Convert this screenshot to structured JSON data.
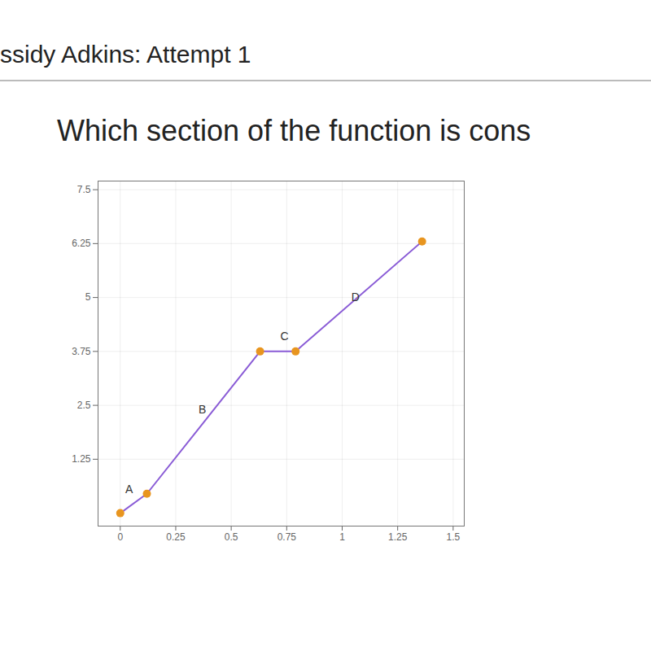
{
  "chart_data": {
    "type": "line",
    "subtitle": "ssidy Adkins: Attempt 1",
    "title": "Which section of the function is cons",
    "x": [
      0,
      0.12,
      0.63,
      0.79,
      1.36
    ],
    "values": [
      0,
      0.45,
      3.75,
      3.75,
      6.3
    ],
    "color": "#8a5cd6",
    "marker": "circle",
    "xlim": [
      -0.1,
      1.55
    ],
    "ylim": [
      -0.3,
      7.7
    ],
    "xticks": [
      0,
      0.25,
      0.5,
      0.75,
      1,
      1.25,
      1.5
    ],
    "yticks": [
      1.25,
      2.5,
      3.75,
      5,
      6.25,
      7.5
    ],
    "grid": true,
    "annotations": [
      {
        "text": "A",
        "x": 0.04,
        "y": 0.55
      },
      {
        "text": "B",
        "x": 0.37,
        "y": 2.4
      },
      {
        "text": "C",
        "x": 0.74,
        "y": 4.1
      },
      {
        "text": "D",
        "x": 1.06,
        "y": 5.0
      }
    ]
  }
}
